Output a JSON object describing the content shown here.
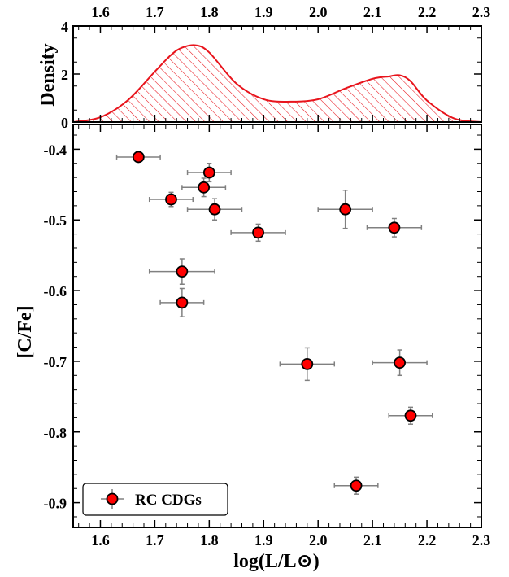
{
  "chart_data": [
    {
      "type": "area",
      "panel": "density",
      "ylabel": "Density",
      "xlim": [
        1.55,
        2.3
      ],
      "ylim": [
        0,
        4
      ],
      "x_ticks": [
        "1.6",
        "1.7",
        "1.8",
        "1.9",
        "2.0",
        "2.1",
        "2.2",
        "2.3"
      ],
      "y_ticks": [
        "0",
        "2",
        "4"
      ],
      "fill": "hatched",
      "color": "#e8141c",
      "x": [
        1.55,
        1.6,
        1.65,
        1.7,
        1.73,
        1.75,
        1.775,
        1.8,
        1.85,
        1.9,
        1.95,
        2.0,
        2.05,
        2.1,
        2.13,
        2.15,
        2.17,
        2.2,
        2.25,
        2.3
      ],
      "y": [
        0.0,
        0.2,
        0.9,
        2.1,
        2.8,
        3.1,
        3.2,
        2.9,
        1.6,
        0.95,
        0.85,
        0.95,
        1.4,
        1.8,
        1.9,
        1.95,
        1.7,
        0.9,
        0.15,
        0.0
      ]
    },
    {
      "type": "scatter",
      "panel": "main",
      "xlabel": "log(L/L⊙)",
      "ylabel": "[C/Fe]",
      "xlim": [
        1.55,
        2.3
      ],
      "ylim": [
        -0.935,
        -0.365
      ],
      "x_ticks": [
        "1.6",
        "1.7",
        "1.8",
        "1.9",
        "2.0",
        "2.1",
        "2.2",
        "2.3"
      ],
      "y_ticks": [
        "-0.4",
        "-0.5",
        "-0.6",
        "-0.7",
        "-0.8",
        "-0.9"
      ],
      "legend": {
        "label": "RC CDGs",
        "position": "lower-left"
      },
      "marker_color": "#ff0000",
      "errorbar_color": "#808080",
      "series": [
        {
          "name": "RC CDGs",
          "points": [
            {
              "x": 1.67,
              "y": -0.411,
              "xerr": 0.04,
              "yerr": 0.007
            },
            {
              "x": 1.8,
              "y": -0.433,
              "xerr": 0.04,
              "yerr": 0.013
            },
            {
              "x": 1.79,
              "y": -0.454,
              "xerr": 0.04,
              "yerr": 0.013
            },
            {
              "x": 1.73,
              "y": -0.471,
              "xerr": 0.04,
              "yerr": 0.01
            },
            {
              "x": 1.81,
              "y": -0.485,
              "xerr": 0.05,
              "yerr": 0.015
            },
            {
              "x": 1.89,
              "y": -0.518,
              "xerr": 0.05,
              "yerr": 0.012
            },
            {
              "x": 2.05,
              "y": -0.485,
              "xerr": 0.05,
              "yerr": 0.027
            },
            {
              "x": 2.14,
              "y": -0.511,
              "xerr": 0.05,
              "yerr": 0.013
            },
            {
              "x": 1.75,
              "y": -0.573,
              "xerr": 0.06,
              "yerr": 0.018
            },
            {
              "x": 1.75,
              "y": -0.617,
              "xerr": 0.04,
              "yerr": 0.02
            },
            {
              "x": 1.98,
              "y": -0.704,
              "xerr": 0.05,
              "yerr": 0.023
            },
            {
              "x": 2.15,
              "y": -0.702,
              "xerr": 0.05,
              "yerr": 0.018
            },
            {
              "x": 2.17,
              "y": -0.777,
              "xerr": 0.04,
              "yerr": 0.012
            },
            {
              "x": 2.07,
              "y": -0.876,
              "xerr": 0.04,
              "yerr": 0.012
            }
          ]
        }
      ]
    }
  ]
}
